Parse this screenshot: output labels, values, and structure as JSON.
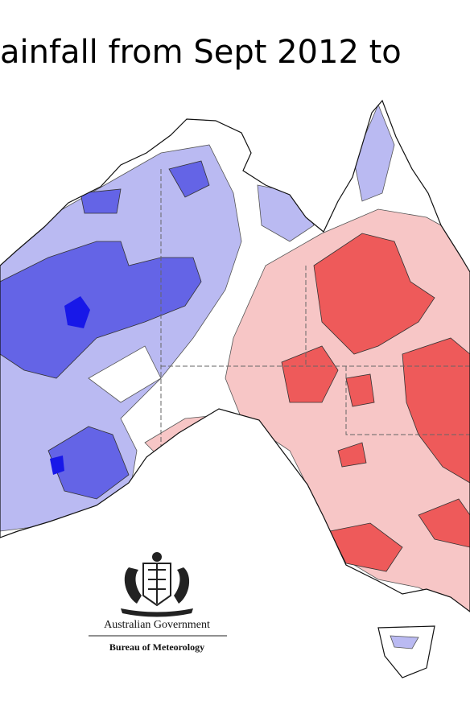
{
  "header": {
    "title": "ainfall from Sept 2012 to"
  },
  "logo": {
    "line1": "Australian Government",
    "line2": "Bureau of Meteorology"
  }
}
